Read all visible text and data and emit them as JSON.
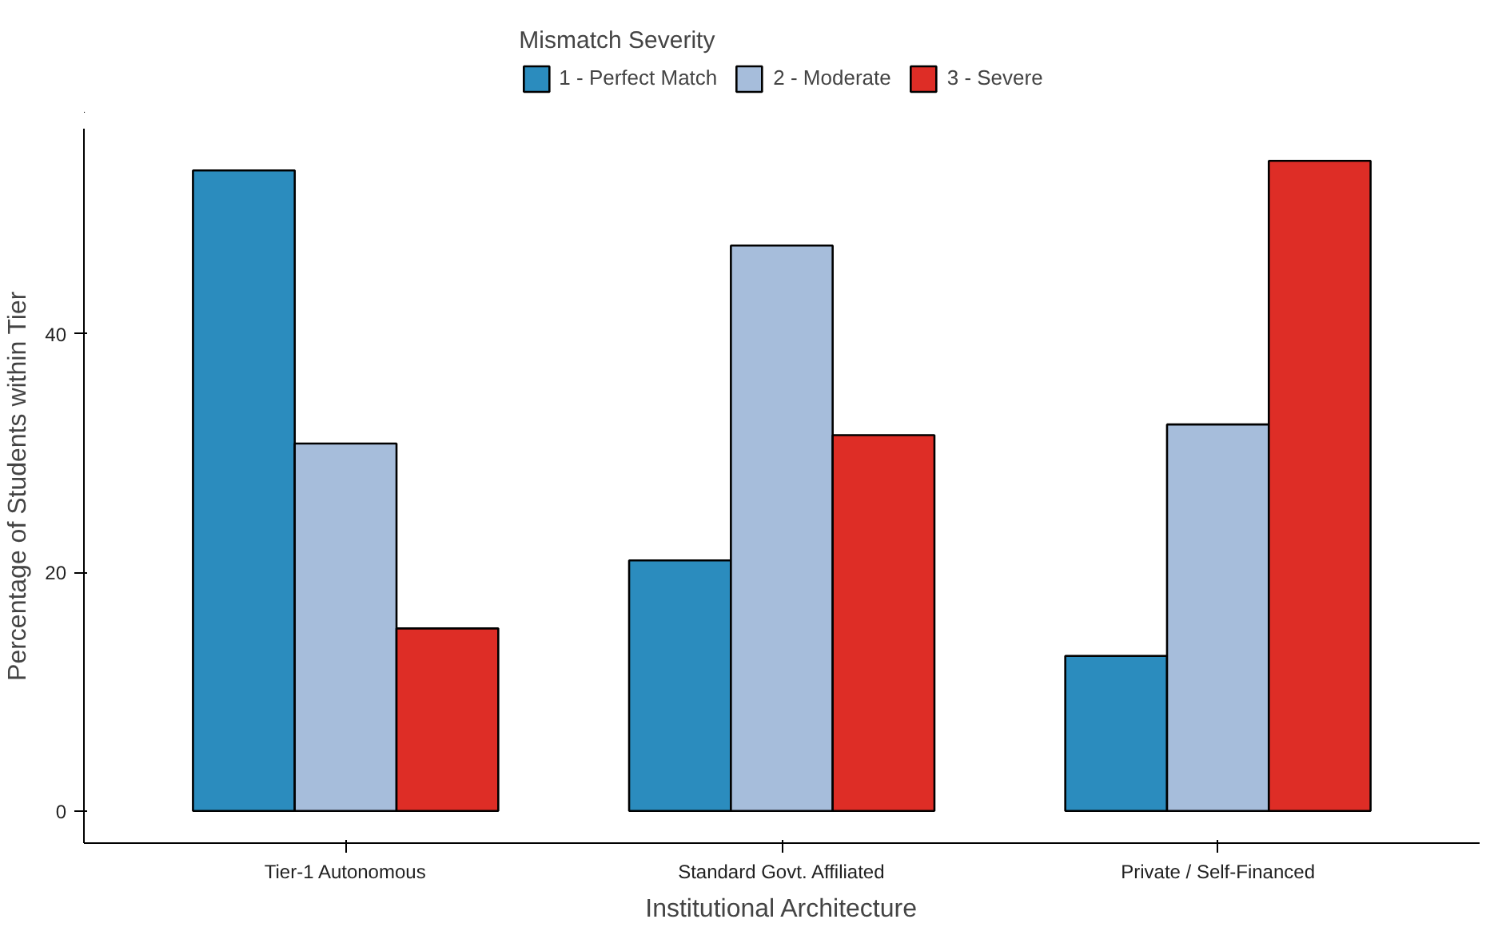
{
  "chart_data": {
    "type": "bar",
    "xlabel": "Institutional Architecture",
    "ylabel": "Percentage of Students within Tier",
    "legend_title": "Mismatch Severity",
    "legend": "top",
    "categories": [
      "Tier-1 Autonomous",
      "Standard Govt. Affiliated",
      "Private / Self-Financed"
    ],
    "series": [
      {
        "name": "1 - Perfect Match",
        "color": "#2b8cbe",
        "values": [
          53.7,
          21.0,
          13.0
        ]
      },
      {
        "name": "2 - Moderate",
        "color": "#a6bddb",
        "values": [
          30.8,
          47.4,
          32.4
        ]
      },
      {
        "name": "3 - Severe",
        "color": "#de2d26",
        "values": [
          15.3,
          31.5,
          54.5
        ]
      }
    ],
    "ylim": [
      -2.7,
      57.2
    ],
    "yticks": [
      0,
      20,
      40
    ],
    "grid": false
  }
}
